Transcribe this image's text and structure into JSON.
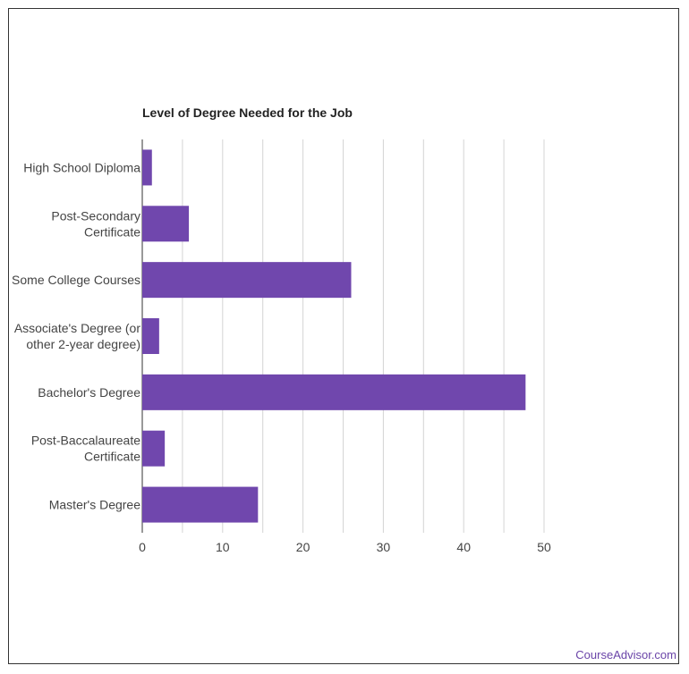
{
  "chart_data": {
    "type": "bar",
    "orientation": "horizontal",
    "title": "Level of Degree Needed for the Job",
    "categories": [
      [
        "High School Diploma"
      ],
      [
        "Post-Secondary",
        "Certificate"
      ],
      [
        "Some College Courses"
      ],
      [
        "Associate's Degree (or",
        "other 2-year degree)"
      ],
      [
        "Bachelor's Degree"
      ],
      [
        "Post-Baccalaureate",
        "Certificate"
      ],
      [
        "Master's Degree"
      ]
    ],
    "values": [
      1.2,
      5.8,
      26.0,
      2.1,
      47.7,
      2.8,
      14.4
    ],
    "xlim": [
      0,
      50
    ],
    "xticks": [
      "0",
      "10",
      "20",
      "30",
      "40",
      "50"
    ],
    "xlabel": "",
    "ylabel": "",
    "grid": true,
    "bar_color": "#7047ad"
  },
  "footer": {
    "credit": "CourseAdvisor.com"
  },
  "colors": {
    "grid": "#d4d4d4",
    "text": "#444444",
    "link": "#6a44a8"
  }
}
